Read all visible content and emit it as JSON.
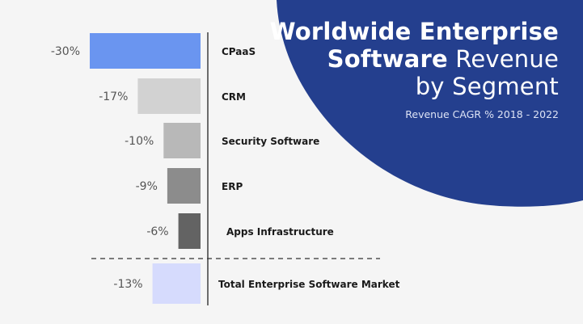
{
  "title": {
    "line1_bold": "Worldwide Enterprise",
    "line2_bold": "Software",
    "line2_rest": " Revenue",
    "line3": "by Segment"
  },
  "subtitle": "Revenue CAGR % 2018 - 2022",
  "colors": {
    "background": "#f5f5f5",
    "blob": "#243f8e",
    "axis": "#222222",
    "label_text": "#1a1a1a",
    "value_text": "#555555"
  },
  "chart_data": {
    "type": "bar",
    "orientation": "horizontal",
    "direction": "negative-left",
    "value_unit": "%",
    "xlim": [
      -30,
      0
    ],
    "categories": [
      "CPaaS",
      "CRM",
      "Security Software",
      "ERP",
      "Apps Infrastructure",
      "Total Enterprise Software Market"
    ],
    "values": [
      -30,
      -17,
      -10,
      -9,
      -6,
      -13
    ],
    "value_labels": [
      "-30%",
      "-17%",
      "-10%",
      "-9%",
      "-6%",
      "-13%"
    ],
    "bar_colors": [
      "#6a95f0",
      "#d2d2d2",
      "#b8b8b8",
      "#8c8c8c",
      "#636363",
      "#d6dbfd"
    ],
    "separator_before_last": true,
    "grid": false,
    "legend": "none"
  }
}
